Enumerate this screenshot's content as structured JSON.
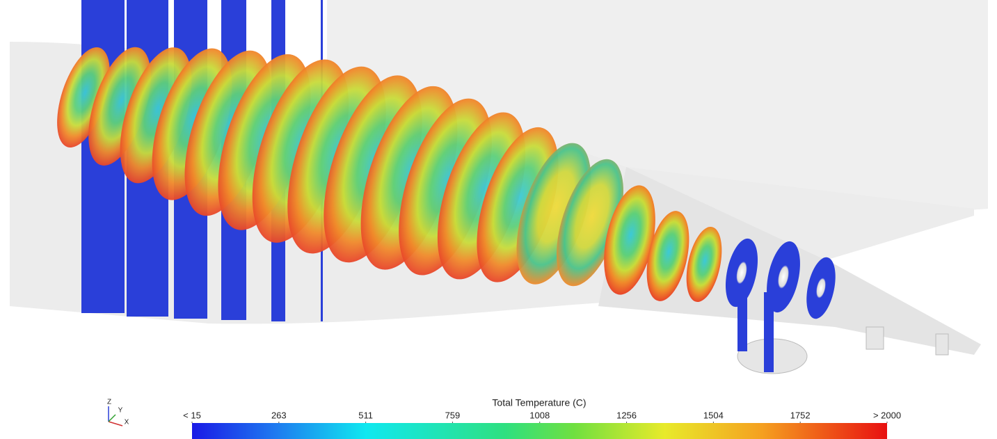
{
  "colorbar": {
    "title": "Total Temperature (C)",
    "range": [
      15,
      2000
    ],
    "ticks": [
      {
        "value": 15,
        "label": "< 15"
      },
      263,
      511,
      759,
      1008,
      1256,
      1504,
      1752,
      {
        "value": 2000,
        "label": "> 2000"
      }
    ]
  },
  "axes_triad": {
    "labels": [
      "Z",
      "Y",
      "X"
    ]
  }
}
